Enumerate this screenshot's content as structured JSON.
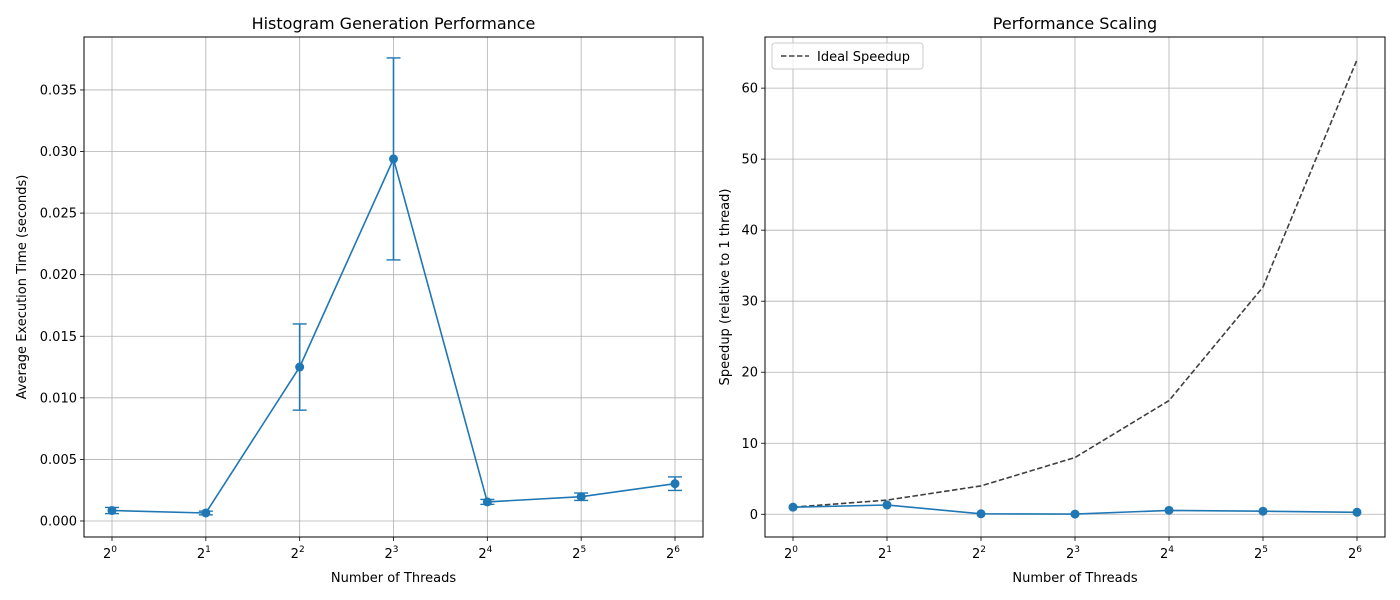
{
  "chart_data": [
    {
      "type": "line",
      "title": "Histogram Generation Performance",
      "xlabel": "Number of Threads",
      "ylabel": "Average Execution Time (seconds)",
      "x_scale": "log2",
      "x": [
        1,
        2,
        4,
        8,
        16,
        32,
        64
      ],
      "xtick_labels": [
        {
          "base": "2",
          "exp": "0"
        },
        {
          "base": "2",
          "exp": "1"
        },
        {
          "base": "2",
          "exp": "2"
        },
        {
          "base": "2",
          "exp": "3"
        },
        {
          "base": "2",
          "exp": "4"
        },
        {
          "base": "2",
          "exp": "5"
        },
        {
          "base": "2",
          "exp": "6"
        }
      ],
      "ylim": [
        -0.0013,
        0.0393
      ],
      "yticks": [
        0.0,
        0.005,
        0.01,
        0.015,
        0.02,
        0.025,
        0.03,
        0.035
      ],
      "ytick_labels": [
        "0.000",
        "0.005",
        "0.010",
        "0.015",
        "0.020",
        "0.025",
        "0.030",
        "0.035"
      ],
      "grid": true,
      "series": [
        {
          "values": [
            0.00085,
            0.00065,
            0.0125,
            0.0294,
            0.00155,
            0.00197,
            0.00303
          ],
          "error": [
            0.00025,
            0.00015,
            0.0035,
            0.0082,
            0.0002,
            0.0003,
            0.00055
          ],
          "color": "#1f77b4",
          "marker": "circle",
          "errorbars": true
        }
      ]
    },
    {
      "type": "line",
      "title": "Performance Scaling",
      "xlabel": "Number of Threads",
      "ylabel": "Speedup (relative to 1 thread)",
      "x_scale": "log2",
      "x": [
        1,
        2,
        4,
        8,
        16,
        32,
        64
      ],
      "xtick_labels": [
        {
          "base": "2",
          "exp": "0"
        },
        {
          "base": "2",
          "exp": "1"
        },
        {
          "base": "2",
          "exp": "2"
        },
        {
          "base": "2",
          "exp": "3"
        },
        {
          "base": "2",
          "exp": "4"
        },
        {
          "base": "2",
          "exp": "5"
        },
        {
          "base": "2",
          "exp": "6"
        }
      ],
      "ylim": [
        -3.2,
        67.2
      ],
      "yticks": [
        0,
        10,
        20,
        30,
        40,
        50,
        60
      ],
      "ytick_labels": [
        "0",
        "10",
        "20",
        "30",
        "40",
        "50",
        "60"
      ],
      "grid": true,
      "legend": {
        "placement": "top-left",
        "entries": [
          "Ideal Speedup"
        ]
      },
      "series": [
        {
          "values": [
            1.0,
            1.31,
            0.068,
            0.029,
            0.55,
            0.43,
            0.28
          ],
          "color": "#1f77b4",
          "marker": "circle"
        },
        {
          "name": "Ideal Speedup",
          "values": [
            1,
            2,
            4,
            8,
            16,
            32,
            64
          ],
          "color": "#404040",
          "dashed": true
        }
      ]
    }
  ]
}
